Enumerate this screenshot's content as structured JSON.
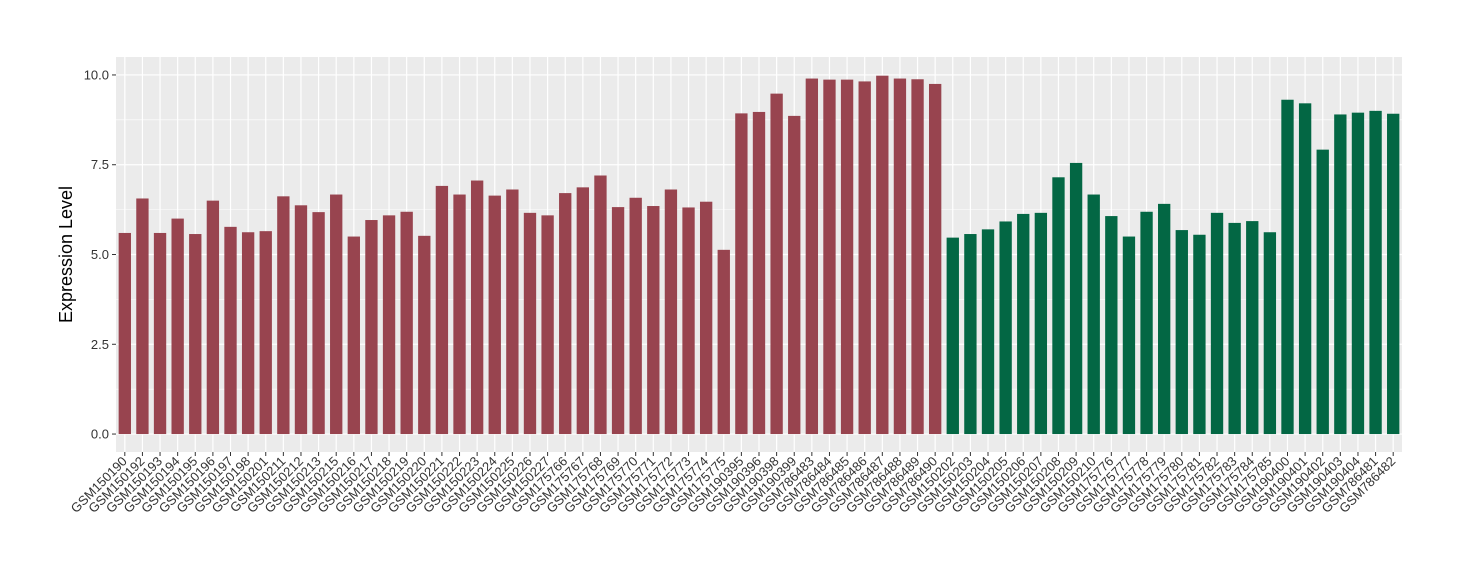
{
  "chart_data": {
    "type": "bar",
    "title": "",
    "xlabel": "",
    "ylabel": "Expression Level",
    "ylim": [
      -0.5,
      10.5
    ],
    "yticks": [
      0.0,
      2.5,
      5.0,
      7.5,
      10.0
    ],
    "ytick_labels": [
      "0.0",
      "2.5",
      "5.0",
      "7.5",
      "10.0"
    ],
    "grid": true,
    "legend": "none",
    "background_color": "#ebebeb",
    "grid_color": "#ffffff",
    "series": [
      {
        "color": "#98444f",
        "categories": [
          "GSM150190",
          "GSM150192",
          "GSM150193",
          "GSM150194",
          "GSM150195",
          "GSM150196",
          "GSM150197",
          "GSM150198",
          "GSM150201",
          "GSM150211",
          "GSM150212",
          "GSM150213",
          "GSM150215",
          "GSM150216",
          "GSM150217",
          "GSM150218",
          "GSM150219",
          "GSM150220",
          "GSM150221",
          "GSM150222",
          "GSM150223",
          "GSM150224",
          "GSM150225",
          "GSM150226",
          "GSM150227",
          "GSM175766",
          "GSM175767",
          "GSM175768",
          "GSM175769",
          "GSM175770",
          "GSM175771",
          "GSM175772",
          "GSM175773",
          "GSM175774",
          "GSM175775",
          "GSM190395",
          "GSM190396",
          "GSM190398",
          "GSM190399",
          "GSM786483",
          "GSM786484",
          "GSM786485",
          "GSM786486",
          "GSM786487",
          "GSM786488",
          "GSM786489",
          "GSM786490"
        ],
        "values": [
          5.6,
          6.56,
          5.6,
          6.0,
          5.57,
          6.5,
          5.77,
          5.62,
          5.65,
          6.62,
          6.37,
          6.18,
          6.67,
          5.5,
          5.96,
          6.09,
          6.19,
          5.52,
          6.91,
          6.67,
          7.06,
          6.64,
          6.81,
          6.16,
          6.09,
          6.71,
          6.87,
          7.2,
          6.32,
          6.58,
          6.35,
          6.81,
          6.31,
          6.47,
          5.13,
          8.93,
          8.97,
          9.48,
          8.86,
          9.9,
          9.87,
          9.87,
          9.82,
          9.98,
          9.9,
          9.88,
          9.75
        ]
      },
      {
        "color": "#036744",
        "categories": [
          "GSM150202",
          "GSM150203",
          "GSM150204",
          "GSM150205",
          "GSM150206",
          "GSM150207",
          "GSM150208",
          "GSM150209",
          "GSM150210",
          "GSM175776",
          "GSM175777",
          "GSM175778",
          "GSM175779",
          "GSM175780",
          "GSM175781",
          "GSM175782",
          "GSM175783",
          "GSM175784",
          "GSM175785",
          "GSM190400",
          "GSM190401",
          "GSM190402",
          "GSM190403",
          "GSM190404",
          "GSM786481",
          "GSM786482"
        ],
        "values": [
          5.47,
          5.57,
          5.7,
          5.92,
          6.13,
          6.16,
          7.15,
          7.55,
          6.67,
          6.07,
          5.5,
          6.19,
          6.41,
          5.68,
          5.55,
          6.16,
          5.88,
          5.93,
          5.62,
          9.31,
          9.21,
          7.92,
          8.9,
          8.95,
          9.0,
          8.92
        ]
      }
    ]
  }
}
